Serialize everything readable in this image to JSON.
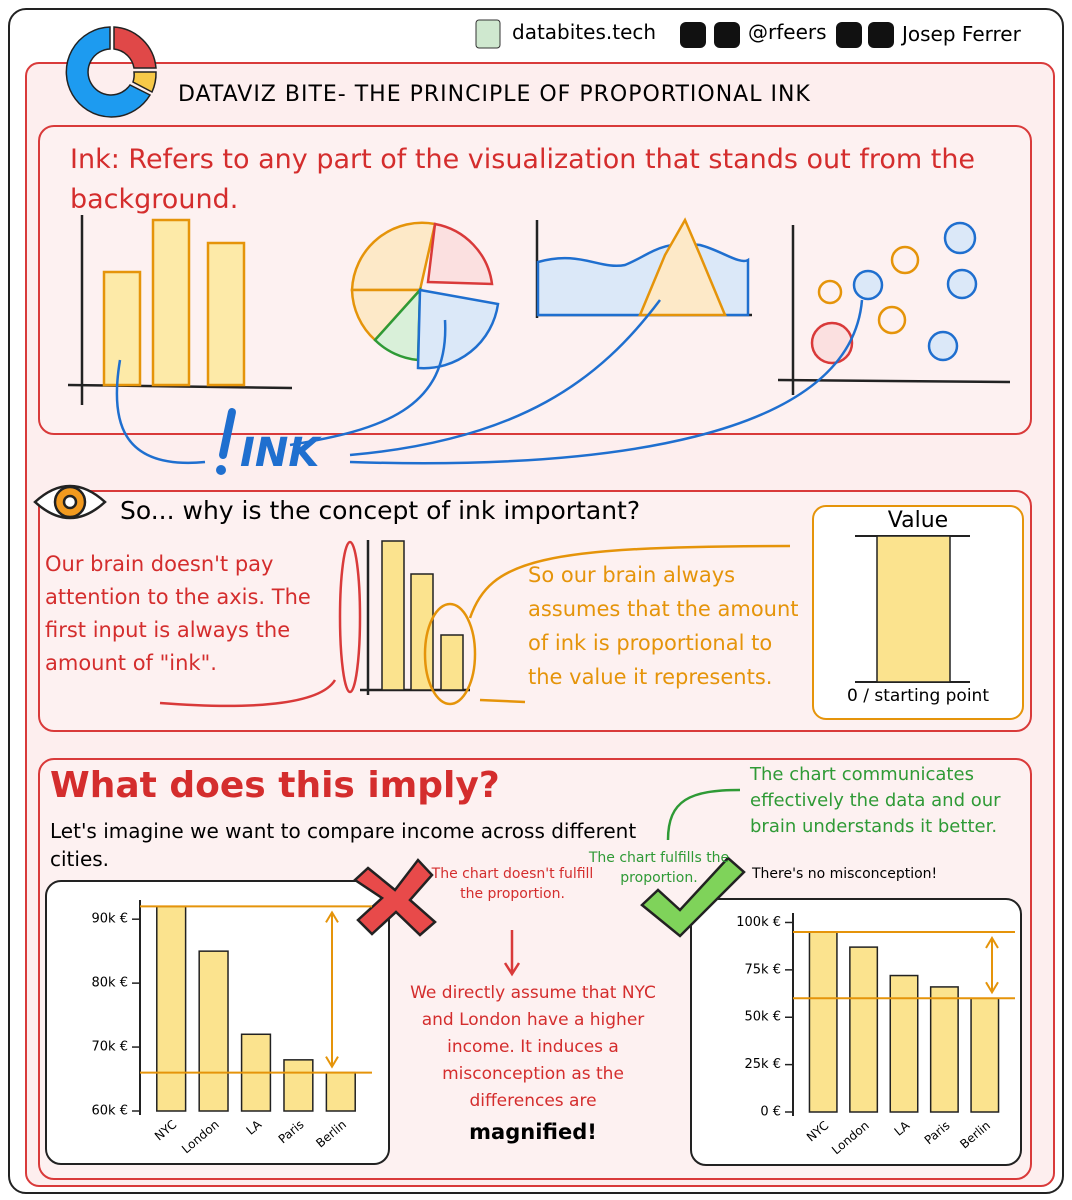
{
  "header": {
    "site": "databites.tech",
    "handle": "@rfeers",
    "author": "Josep Ferrer",
    "title": "DATAVIZ BITE- THE PRINCIPLE OF PROPORTIONAL INK"
  },
  "ink": {
    "definition": "Ink: Refers to any part of the visualization that stands out from the background.",
    "label": "INK"
  },
  "importance": {
    "question": "So... why is the concept of ink important?",
    "brain_text": "Our brain doesn't pay attention to the axis. The first input is always the amount of \"ink\".",
    "assumption_text": "So our brain always assumes that the amount of ink is proportional to the value it represents.",
    "box_title": "Value",
    "box_base": "0 / starting point"
  },
  "implication": {
    "heading": "What does this imply?",
    "intro": "Let's imagine we want to compare income across different cities.",
    "bad_note": "The chart doesn't fulfill the proportion.",
    "bad_explanation": "We directly assume that NYC and London have a higher income. It induces a misconception as the differences are",
    "bad_emphasis": "magnified!",
    "good_note": "The chart fulfills the proportion.",
    "good_explanation": "The chart communicates effectively the data and our brain understands it better.",
    "good_footnote": "There's no misconception!"
  },
  "chart_data": [
    {
      "type": "bar",
      "categories": [
        "NYC",
        "London",
        "LA",
        "Paris",
        "Berlin"
      ],
      "values": [
        92000,
        85000,
        72000,
        68000,
        66000
      ],
      "color": "#fbe38e",
      "ylim": [
        60000,
        93000
      ],
      "yticks": [
        {
          "value": 60000,
          "label": "60k €"
        },
        {
          "value": 70000,
          "label": "70k €"
        },
        {
          "value": 80000,
          "label": "80k €"
        },
        {
          "value": 90000,
          "label": "90k €"
        }
      ]
    },
    {
      "type": "bar",
      "categories": [
        "NYC",
        "London",
        "LA",
        "Paris",
        "Berlin"
      ],
      "values": [
        95000,
        87000,
        72000,
        66000,
        60000
      ],
      "color": "#fbe38e",
      "ylim": [
        0,
        105000
      ],
      "yticks": [
        {
          "value": 0,
          "label": "0 €"
        },
        {
          "value": 25000,
          "label": "25k €"
        },
        {
          "value": 50000,
          "label": "50k €"
        },
        {
          "value": 75000,
          "label": "75k €"
        },
        {
          "value": 100000,
          "label": "100k €"
        }
      ]
    }
  ]
}
